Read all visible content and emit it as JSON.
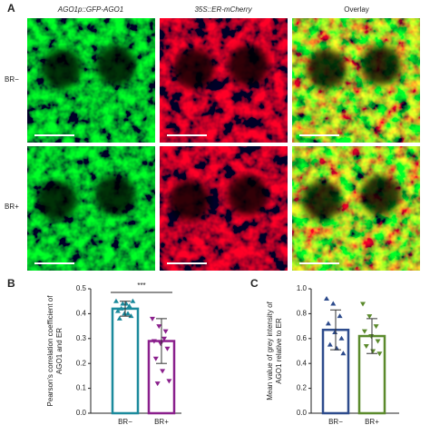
{
  "figure": {
    "panel_label": "A",
    "columns": [
      "AGO1p::GFP-AGO1",
      "35S::ER-mCherry",
      "Overlay"
    ],
    "rows": [
      "BR−",
      "BR+"
    ]
  },
  "chart_data": [
    {
      "type": "bar",
      "panel_label": "B",
      "ylabel": [
        "Pearson's correlation coefficient of",
        "AGO1 and ER"
      ],
      "categories": [
        "BR−",
        "BR+"
      ],
      "values": [
        0.42,
        0.29
      ],
      "errors": [
        0.03,
        0.09
      ],
      "colors": [
        "#1b8a9c",
        "#8a1f8c"
      ],
      "markers": [
        "triangle-up",
        "triangle-down"
      ],
      "points": [
        [
          0.45,
          0.44,
          0.43,
          0.41,
          0.4,
          0.39,
          0.38,
          0.44,
          0.45,
          0.42,
          0.4
        ],
        [
          0.38,
          0.35,
          0.33,
          0.29,
          0.28,
          0.26,
          0.22,
          0.17,
          0.13,
          0.12,
          0.3
        ]
      ],
      "annotation": "***",
      "ylim": [
        0,
        0.5
      ],
      "yticks": [
        {
          "value": 0,
          "label": "0.0"
        },
        0.1,
        0.2,
        0.3,
        0.4,
        0.5
      ]
    },
    {
      "type": "bar",
      "panel_label": "C",
      "ylabel": [
        "Mean value of grey intensity of",
        "AGO1 relative to ER"
      ],
      "categories": [
        "BR−",
        "BR+"
      ],
      "values": [
        0.67,
        0.62
      ],
      "errors": [
        0.16,
        0.14
      ],
      "colors": [
        "#2d4b8c",
        "#5b8a2c"
      ],
      "markers": [
        "triangle-up",
        "triangle-down"
      ],
      "points": [
        [
          0.92,
          0.88,
          0.78,
          0.72,
          0.65,
          0.6,
          0.55,
          0.52,
          0.48
        ],
        [
          0.88,
          0.78,
          0.7,
          0.66,
          0.62,
          0.58,
          0.54,
          0.5,
          0.48
        ]
      ],
      "ylim": [
        0,
        1.0
      ],
      "yticks": [
        {
          "value": 0,
          "label": "0.0"
        },
        0.2,
        0.4,
        0.6,
        0.8,
        {
          "value": 1,
          "label": "1.0"
        }
      ]
    }
  ]
}
